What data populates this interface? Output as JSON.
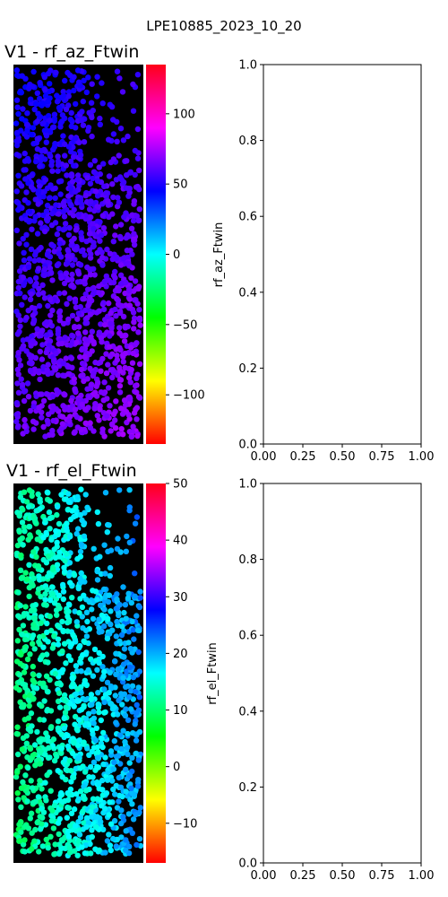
{
  "figure": {
    "suptitle": "LPE10885_2023_10_20"
  },
  "colors": {
    "background_panel": "#000000",
    "colormap": "hsv (red → yellow → green → cyan → blue → magenta)"
  },
  "chart_data": [
    {
      "type": "scatter",
      "title": "V1 - rf_az_Ftwin",
      "xlabel": "",
      "ylabel": "",
      "description_of_points": "Dense field of cell markers; colors mostly blue to light blue",
      "color_range": [
        -135,
        135
      ],
      "colorbar": {
        "ticks": [
          -100,
          -50,
          0,
          50,
          100
        ],
        "tick_labels": [
          "−100",
          "−50",
          "0",
          "50",
          "100"
        ]
      },
      "value_distribution": {
        "min": 35,
        "max": 75
      }
    },
    {
      "type": "scatter",
      "title": "",
      "xlabel": "",
      "ylabel": "rf_az_Ftwin",
      "xlim": [
        0,
        1
      ],
      "ylim": [
        0,
        1
      ],
      "xticks": [
        "0.00",
        "0.25",
        "0.50",
        "0.75",
        "1.00"
      ],
      "yticks": [
        "0.0",
        "0.2",
        "0.4",
        "0.6",
        "0.8",
        "1.0"
      ],
      "series": []
    },
    {
      "type": "scatter",
      "title": "V1 - rf_el_Ftwin",
      "xlabel": "",
      "ylabel": "",
      "description_of_points": "Dense field of cell markers; colors green to cyan",
      "color_range": [
        -17,
        50
      ],
      "colorbar": {
        "ticks": [
          -10,
          0,
          10,
          20,
          30,
          40,
          50
        ],
        "tick_labels": [
          "−10",
          "0",
          "10",
          "20",
          "30",
          "40",
          "50"
        ]
      },
      "value_distribution": {
        "min": 8,
        "max": 24
      }
    },
    {
      "type": "scatter",
      "title": "",
      "xlabel": "",
      "ylabel": "rf_el_Ftwin",
      "xlim": [
        0,
        1
      ],
      "ylim": [
        0,
        1
      ],
      "xticks": [
        "0.00",
        "0.25",
        "0.50",
        "0.75",
        "1.00"
      ],
      "yticks": [
        "0.0",
        "0.2",
        "0.4",
        "0.6",
        "0.8",
        "1.0"
      ],
      "series": []
    }
  ]
}
